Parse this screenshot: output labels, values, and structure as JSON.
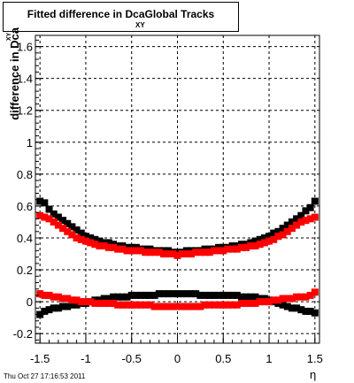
{
  "title": {
    "main": "Fitted difference in DcaGlobal Tracks",
    "subscript": "XY"
  },
  "footer": "Thu Oct 27 17:16:53 2011",
  "chart_data": {
    "type": "scatter",
    "xlabel": "η",
    "ylabel": "difference in Dca",
    "ylabel_subscript": "XY",
    "xlim": [
      -1.55,
      1.55
    ],
    "ylim": [
      -0.26,
      1.67
    ],
    "xticks": [
      -1.5,
      -1,
      -0.5,
      0,
      0.5,
      1,
      1.5
    ],
    "xtick_labels": [
      "-1.5",
      "-1",
      "-0.5",
      "0",
      "0.5",
      "1",
      "1.5"
    ],
    "yticks": [
      -0.2,
      0,
      0.2,
      0.4,
      0.6,
      0.8,
      1,
      1.2,
      1.4,
      1.6
    ],
    "ytick_labels": [
      "-0.2",
      "0",
      "0.2",
      "0.4",
      "0.6",
      "0.8",
      "1",
      "1.2",
      "1.4",
      "1.6"
    ],
    "grid": true,
    "x": [
      -1.5,
      -1.45,
      -1.4,
      -1.35,
      -1.3,
      -1.25,
      -1.2,
      -1.15,
      -1.1,
      -1.05,
      -1.0,
      -0.95,
      -0.9,
      -0.85,
      -0.8,
      -0.75,
      -0.7,
      -0.65,
      -0.6,
      -0.55,
      -0.5,
      -0.45,
      -0.4,
      -0.35,
      -0.3,
      -0.25,
      -0.2,
      -0.15,
      -0.1,
      -0.05,
      0.0,
      0.05,
      0.1,
      0.15,
      0.2,
      0.25,
      0.3,
      0.35,
      0.4,
      0.45,
      0.5,
      0.55,
      0.6,
      0.65,
      0.7,
      0.75,
      0.8,
      0.85,
      0.9,
      0.95,
      1.0,
      1.05,
      1.1,
      1.15,
      1.2,
      1.25,
      1.3,
      1.35,
      1.4,
      1.45,
      1.5
    ],
    "series": [
      {
        "color": "#000000",
        "values": [
          0.63,
          0.62,
          0.58,
          0.55,
          0.53,
          0.51,
          0.49,
          0.47,
          0.45,
          0.43,
          0.41,
          0.4,
          0.39,
          0.38,
          0.37,
          0.37,
          0.36,
          0.35,
          0.35,
          0.34,
          0.34,
          0.34,
          0.33,
          0.33,
          0.33,
          0.32,
          0.32,
          0.32,
          0.32,
          0.31,
          0.31,
          0.31,
          0.32,
          0.32,
          0.32,
          0.32,
          0.33,
          0.33,
          0.33,
          0.34,
          0.34,
          0.34,
          0.35,
          0.35,
          0.36,
          0.36,
          0.37,
          0.38,
          0.39,
          0.4,
          0.41,
          0.43,
          0.44,
          0.46,
          0.48,
          0.5,
          0.52,
          0.54,
          0.57,
          0.59,
          0.63
        ]
      },
      {
        "color": "#ff0000",
        "values": [
          0.54,
          0.53,
          0.52,
          0.5,
          0.48,
          0.46,
          0.44,
          0.42,
          0.4,
          0.39,
          0.38,
          0.37,
          0.36,
          0.35,
          0.35,
          0.34,
          0.34,
          0.33,
          0.33,
          0.32,
          0.32,
          0.32,
          0.32,
          0.31,
          0.31,
          0.31,
          0.31,
          0.3,
          0.3,
          0.3,
          0.29,
          0.3,
          0.3,
          0.3,
          0.31,
          0.31,
          0.31,
          0.31,
          0.32,
          0.32,
          0.32,
          0.33,
          0.33,
          0.33,
          0.34,
          0.34,
          0.35,
          0.35,
          0.36,
          0.37,
          0.38,
          0.39,
          0.41,
          0.42,
          0.44,
          0.46,
          0.48,
          0.5,
          0.51,
          0.52,
          0.53
        ]
      },
      {
        "color": "#000000",
        "values": [
          -0.08,
          -0.06,
          -0.05,
          -0.04,
          -0.04,
          -0.03,
          -0.03,
          -0.02,
          -0.02,
          -0.01,
          -0.01,
          0.0,
          0.01,
          0.01,
          0.02,
          0.02,
          0.03,
          0.03,
          0.03,
          0.03,
          0.04,
          0.04,
          0.04,
          0.04,
          0.04,
          0.04,
          0.05,
          0.05,
          0.05,
          0.05,
          0.05,
          0.05,
          0.05,
          0.05,
          0.05,
          0.04,
          0.04,
          0.04,
          0.04,
          0.04,
          0.04,
          0.04,
          0.04,
          0.04,
          0.03,
          0.03,
          0.03,
          0.03,
          0.02,
          0.02,
          0.01,
          0.0,
          -0.01,
          -0.02,
          -0.03,
          -0.04,
          -0.04,
          -0.05,
          -0.06,
          -0.06,
          -0.07
        ]
      },
      {
        "color": "#ff0000",
        "values": [
          0.05,
          0.04,
          0.04,
          0.03,
          0.03,
          0.02,
          0.02,
          0.01,
          0.01,
          0.0,
          0.0,
          0.0,
          -0.01,
          -0.01,
          -0.01,
          -0.01,
          -0.01,
          -0.02,
          -0.02,
          -0.02,
          -0.02,
          -0.02,
          -0.02,
          -0.02,
          -0.02,
          -0.03,
          -0.03,
          -0.03,
          -0.03,
          -0.03,
          -0.03,
          -0.03,
          -0.03,
          -0.03,
          -0.03,
          -0.03,
          -0.02,
          -0.02,
          -0.02,
          -0.02,
          -0.02,
          -0.02,
          -0.02,
          -0.02,
          -0.01,
          -0.01,
          -0.01,
          -0.01,
          0.0,
          0.0,
          0.0,
          0.01,
          0.01,
          0.02,
          0.02,
          0.02,
          0.03,
          0.03,
          0.03,
          0.04,
          0.06
        ]
      }
    ]
  }
}
